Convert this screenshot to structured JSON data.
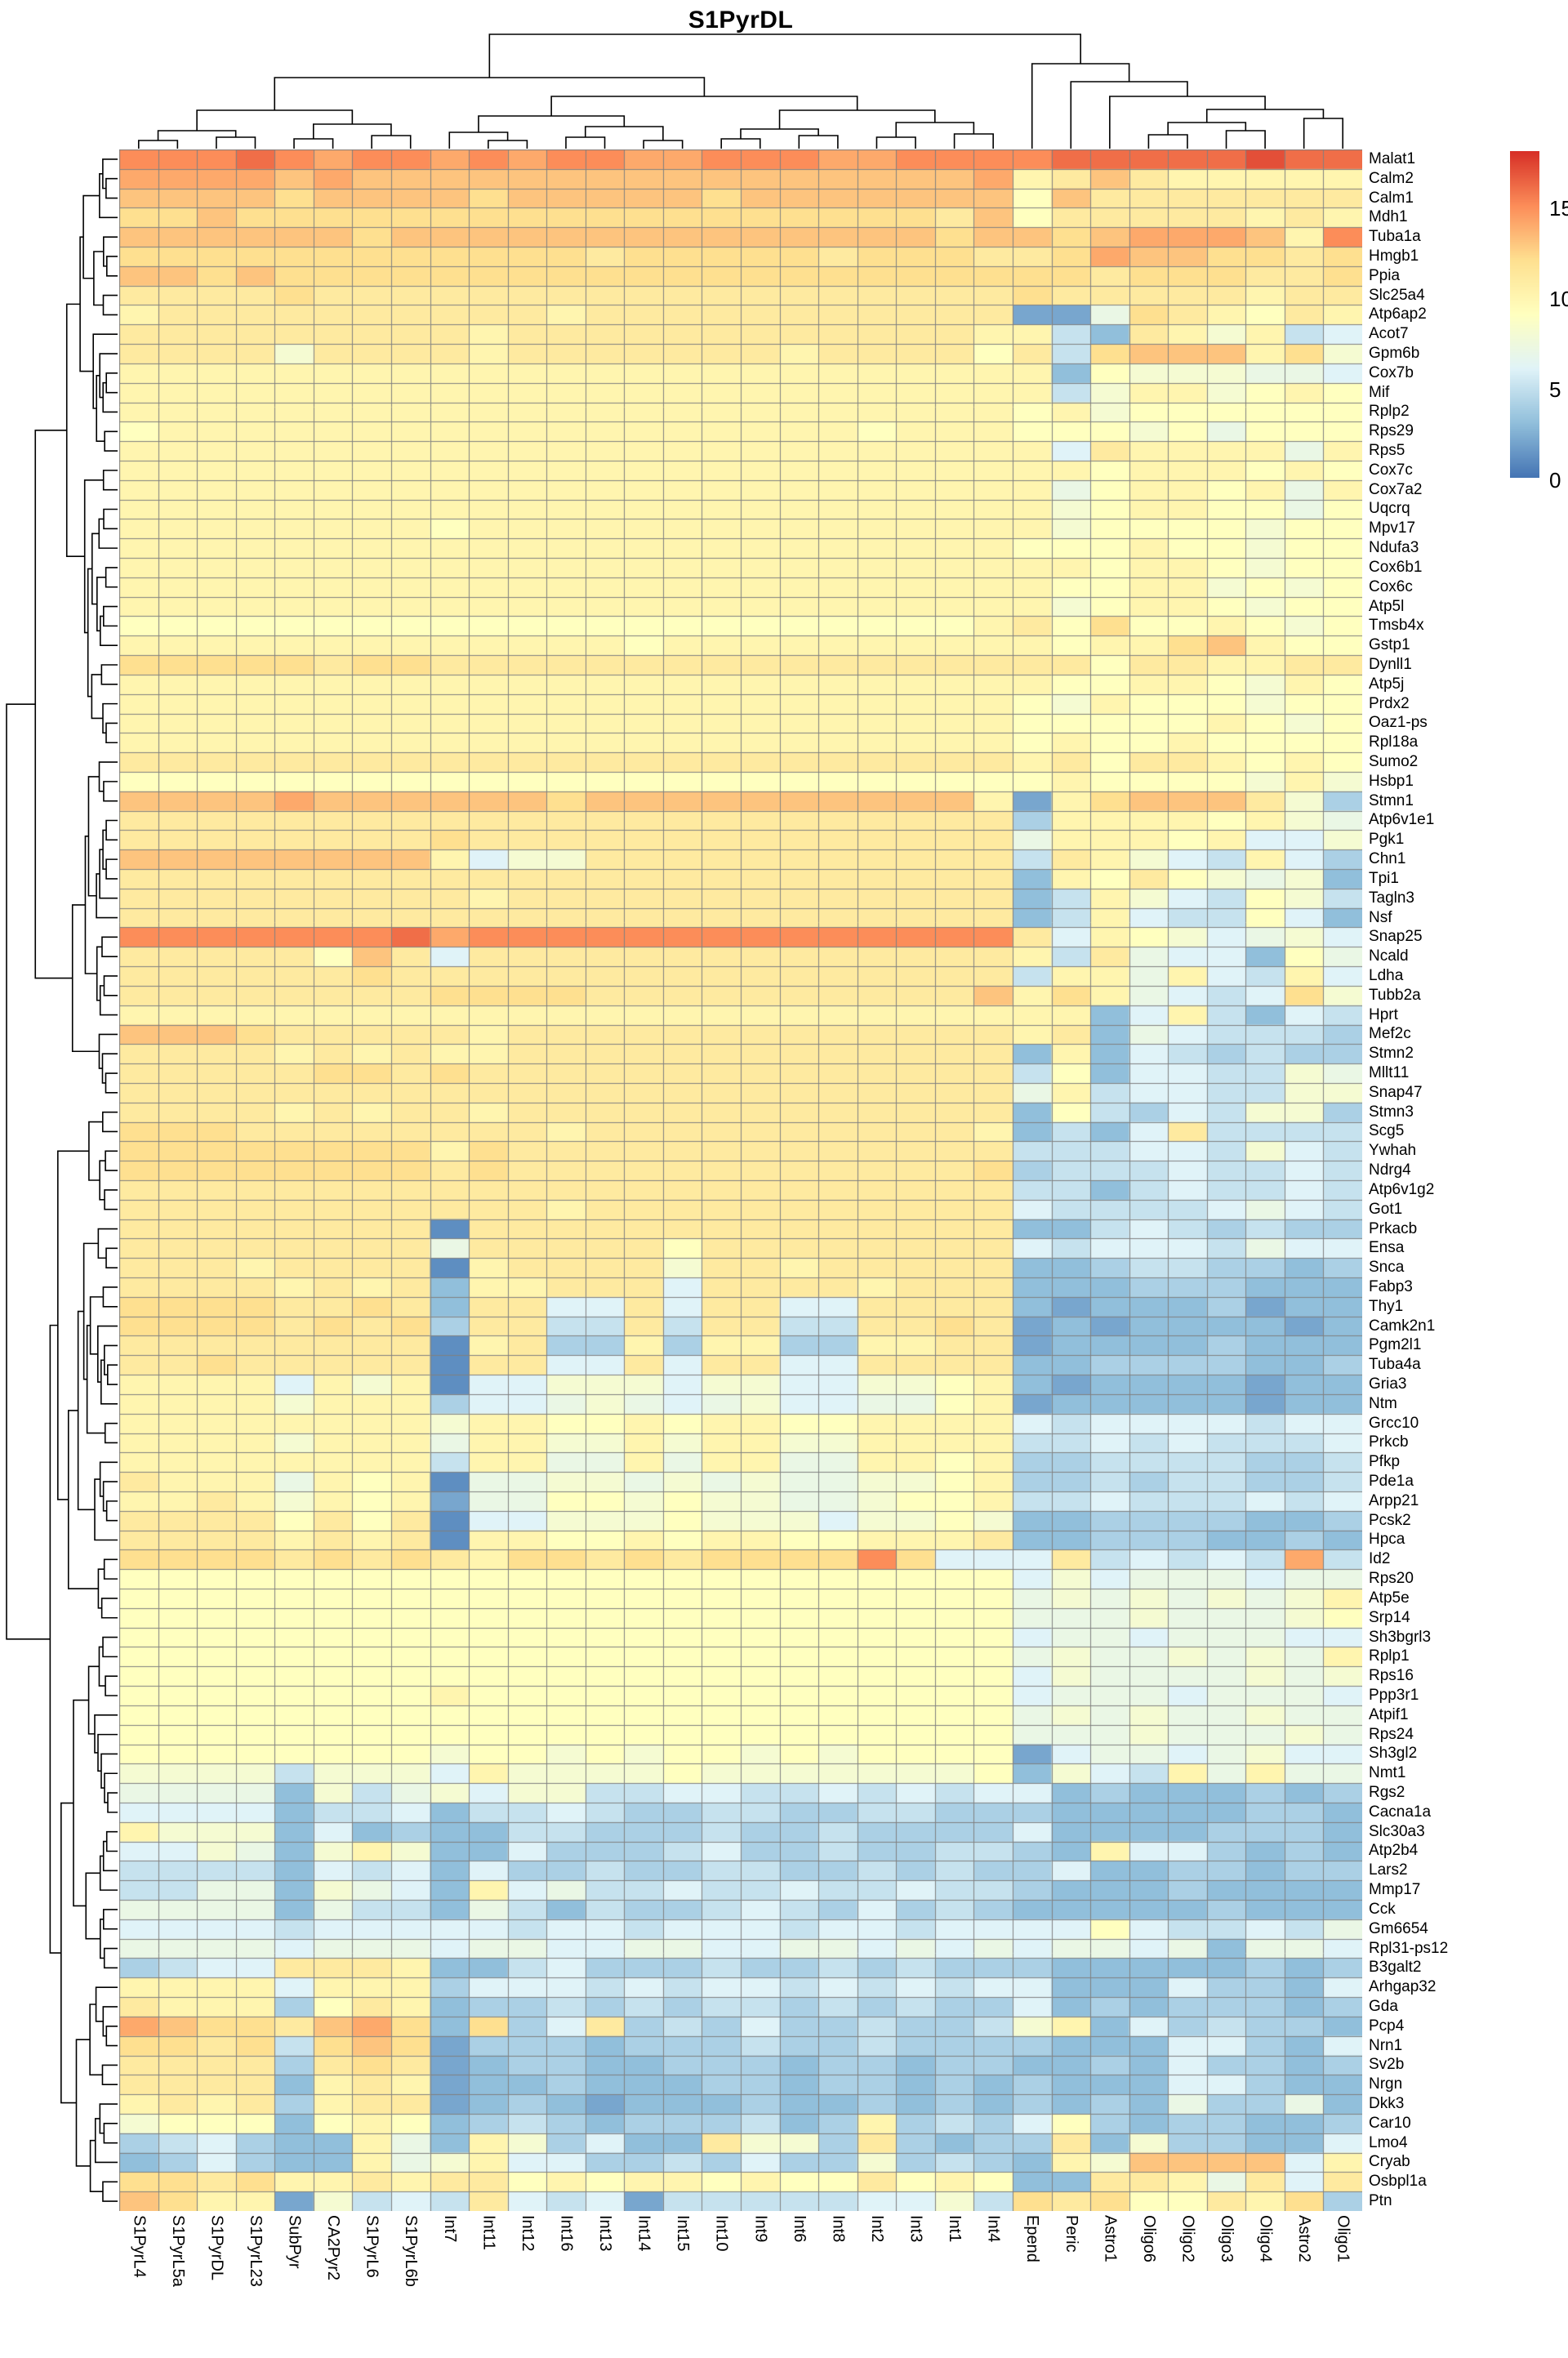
{
  "title": "S1PyrDL",
  "chart_data": {
    "type": "heatmap",
    "title": "S1PyrDL",
    "legend_position": "right",
    "grid": true,
    "grid_color": "#808080",
    "dendrograms": {
      "top": true,
      "left": true,
      "line_color": "#000000"
    },
    "colorbar": {
      "min": 0,
      "max": 18,
      "ticks": [
        15,
        10,
        5,
        0
      ],
      "palette_low_to_high": [
        "#4575b4",
        "#91bfdb",
        "#e0f3f8",
        "#ffffbf",
        "#fee090",
        "#fc8d59",
        "#d73027"
      ]
    },
    "columns": [
      "S1PyrL4",
      "S1PyrL5a",
      "S1PyrDL",
      "S1PyrL23",
      "SubPyr",
      "CA2Pyr2",
      "S1PyrL6",
      "S1PyrL6b",
      "Int7",
      "Int11",
      "Int12",
      "Int16",
      "Int13",
      "Int14",
      "Int15",
      "Int10",
      "Int9",
      "Int6",
      "Int8",
      "Int2",
      "Int3",
      "Int1",
      "Int4",
      "Epend",
      "Peric",
      "Astro1",
      "Oligo6",
      "Oligo2",
      "Oligo3",
      "Oligo4",
      "Astro2",
      "Oligo1"
    ],
    "rows": [
      "Malat1",
      "Calm2",
      "Calm1",
      "Mdh1",
      "Tuba1a",
      "Hmgb1",
      "Ppia",
      "Slc25a4",
      "Atp6ap2",
      "Acot7",
      "Gpm6b",
      "Cox7b",
      "Mif",
      "Rplp2",
      "Rps29",
      "Rps5",
      "Cox7c",
      "Cox7a2",
      "Uqcrq",
      "Mpv17",
      "Ndufa3",
      "Cox6b1",
      "Cox6c",
      "Atp5l",
      "Tmsb4x",
      "Gstp1",
      "Dynll1",
      "Atp5j",
      "Prdx2",
      "Oaz1-ps",
      "Rpl18a",
      "Sumo2",
      "Hsbp1",
      "Stmn1",
      "Atp6v1e1",
      "Pgk1",
      "Chn1",
      "Tpi1",
      "Tagln3",
      "Nsf",
      "Snap25",
      "Ncald",
      "Ldha",
      "Tubb2a",
      "Hprt",
      "Mef2c",
      "Stmn2",
      "Mllt11",
      "Snap47",
      "Stmn3",
      "Scg5",
      "Ywhah",
      "Ndrg4",
      "Atp6v1g2",
      "Got1",
      "Prkacb",
      "Ensa",
      "Snca",
      "Fabp3",
      "Thy1",
      "Camk2n1",
      "Pgm2l1",
      "Tuba4a",
      "Gria3",
      "Ntm",
      "Grcc10",
      "Prkcb",
      "Pfkp",
      "Pde1a",
      "Arpp21",
      "Pcsk2",
      "Hpca",
      "Id2",
      "Rps20",
      "Atp5e",
      "Srp14",
      "Sh3bgrl3",
      "Rplp1",
      "Rps16",
      "Ppp3r1",
      "Atpif1",
      "Rps24",
      "Sh3gl2",
      "Nmt1",
      "Rgs2",
      "Cacna1a",
      "Slc30a3",
      "Atp2b4",
      "Lars2",
      "Mmp17",
      "Cck",
      "Gm6654",
      "Rpl31-ps12",
      "B3galt2",
      "Arhgap32",
      "Gda",
      "Pcp4",
      "Nrn1",
      "Sv2b",
      "Nrgn",
      "Dkk3",
      "Car10",
      "Lmo4",
      "Cryab",
      "Osbpl1a",
      "Ptn"
    ],
    "values_encoding": "Each matrix string holds one character per column (32 per row); characters 0-9 then a-h encode estimated expression values 0-17 on the colorbar scale.",
    "matrix": [
      "fffgfeffefeffeefffeeffffggggghgg",
      "eeeededdddddddddddddddeabdbaaaaa",
      "ddddcddddcdddddcddddddd9dbbbbbbb",
      "ccdccccccccccccccccccbd9bbbbbaba",
      "ddddddcddddddddddddddcddcdeeedaf",
      "ccccccccccccbcccccbcccbbceddccbc",
      "ddcdcccccccccccccccccccccbcccbbc",
      "bbbbcbbbbbbbbbbbbbbbbbbcbbbbbabb",
      "abbbbbbbbbbabbbbbbbbbbb227cba9ba",
      "bbbbbbbbbabbbbbbbbbbbbaa53ba8a56",
      "bbbb8bbbbabbbbbbbabbbb9b5cdddac8",
      "aaaaaaaaaaaaaaaaaaaaaaaa39888776",
      "aaaaaaaaaaaaaaaaaaaaaaaa58aa89a9",
      "aaaaaaaaaaaaaaaaaaaaaaa9a8999999",
      "9aaaaaaaaaaaaaaaaaa9aaa999897999",
      "aaaaaaaaaaaaaaaaaaaaaaaa6baaaa7a",
      "aaaaaaaaaaaaaaaaaaaaaaaaa9aaa9a9",
      "aaaaaaaaaaaaaaaaaaaaaaaa79aa9a7a",
      "aaaaaaaaaaaaaaaaaaaaaaaa89aa9979",
      "aaaaaaaa9aaaaaaaaaaaaaaa89999899",
      "aaaaaaaaaaaaaaaaaaaaaaa999a99899",
      "aaaaaaaaaaaaaaaaaaaaaaaaa9aa9899",
      "aaaaaaaaaaaaaaaaaaaaaaaa99aa8989",
      "aaaaaaaaaaaaaaaaaaaaaaaa89aa9899",
      "9999999999999999999999ab9c99a989",
      "aaaaaaaaaaaaa9aaaaaaaaaa9aacda99",
      "cccccbccbbbbbbbbbbbbbbbbb9bbaabb",
      "aaaaaaaaaaaaaaaaaaaaaaaa99aa98a9",
      "aaaaaaaaaaaaaaaaaaaaaaa98a999899",
      "aaaaaaaaaaaaaaaaaaaaaaa99999a989",
      "aaaaaaaaaaaaaaaaaaaaaaa9a99a9999",
      "bbbbbbbbbbbbbbbbbbbbbbbab9bba9a9",
      "99999999999999999999999 9a99998a8",
      "ddddeddddddcdddddddddda2acdddb84",
      "bbbbbbbbbbbbbbbbbbbbbbb4aaaa9a87",
      "bbbbbbbbcbbbbbbbbbbbbbb7aaa9a668",
      "dddddddda688bbbbbbbbbbb5ba865a64",
      "bbbbbbbbbbbbbbbbbbbbbbb3a9b98783",
      "bbbbbbbbbabbbbbbbbbbbbb35a865985",
      "bbbbbbbbbbbbbbbbbbbbbbb35a655963",
      "fffffffgeffffffffffffffb6a986786",
      "bbbbb9db6bbbbbbbbbbbbbba5b766397",
      "bbbbbbcbbbbbbbbbbbbbbbb5aa7a65a6",
      "bbbbbbbbccccbbbbbbbbbbdaca7656c8",
      "aaaaaaaaaaaaaaaaaaaaaaaaa36a5365",
      "dddcbbbbbabbbbbbbbbbbbbab3765554",
      "bbbbababaabbbbbbbbbbbbb3a3654544",
      "bbbbbccbcbbbbbbbbbbbbbb593665587",
      "bbbbbbbbbbbbbbbbbbbbbbb7a5665588",
      "bbbbababbabbbbbbbbbbbbb395465884",
      "cccbbbbbbbbabbbbbbbbbba3536b5555",
      "ccccccccacbbbbbbbbbbbbb555665865",
      "ccccccccbcbbbbbbbbbbbbc455565565",
      "bbbbbbbbbbbbbbbbbbbbbbb553565565",
      "bbbbbbbbbbbabbbbbbbbbbb655556765",
      "bbbbbbbb1bbbbbbbbbbbbbb335654544",
      "bbbbbbbb7bbbbb9bbbbbbbb656665766",
      "bbbabbbb1abbbb8bbabbbbb334554434",
      "bbbbabab3aabbb6bbbbabbb333444333",
      "ccccbbcb3bb66b6bb66bbbb323334233",
      "ccccbcbc4bb55b5bb55bbcb232333323",
      "bbbbbbbb1ab44a4aa44aabb233334333",
      "bbcbbbbb1bb66b6bb66bbbb334444334",
      "aaaa6a8a16688868866889a323333233",
      "aaaa8aaa46678767866779a233333233",
      "aaaaaaaa8aa99a9aa99aaaa656666566",
      "aaaa8aaa7aa88a8aa88aaaa556565556",
      "aaaaaaaa5aa77a7aa77aa9a445555445",
      "baaa7a9a17788787877889a445455445",
      "aaba8a9a27799898877899a556555656",
      "bbbb9b9b166888988868898334444334",
      "bbbbabab1aa99a9aa99aaab334443343",
      "ccccbcbcbaccbcbccccfc666b56565e5",
      "9999999999999999999999 9686777677",
      "9999999999999999999999 978787878a",
      "9999999999999999999999 9777877789",
      "9999999999999999999999 9677677766",
      "9999999999999999999999 978778787a",
      "9999999999999999999999 9687777878",
      "99999999a99999999999999677767776",
      "9999999999999999999999 9787877877",
      "9999999999999999999999 9777877787",
      "99999999899898998989999267767866",
      "888858886a88889888888893865a7a77",
      "77773857868855665565656634333434",
      "66663556355654455445544433333443",
      "a8883634335544454454444633334443",
      "668738a833644456445445543a664343",
      "55553656364454455445454463344344",
      "557738763a6755655655655433343333",
      "77773755375354456546454333334333",
      "66665666665665666566566669655657",
      "77776777677667766776767677673776",
      "4566bbba335644454454544433333434",
      "aaaa6aaa466656566565656633364436",
      "baaa49ba344545455454544634344434",
      "edccbdec3c46b45464454458a3645443",
      "ccbc5cdc244434445445444433366436",
      "bbbb4bcb234433444344344334364434",
      "bbbb3aba233433344344343433366433",
      "abab4abb234323334334343434374473",
      "899939a934543444534a454694344334",
      "456433a73a84633b884b4344b3844336",
      "346433a78a66445464484543a8dddd6a",
      "ccbcaababb9a9aa9a99b9a933bba7b6b",
      "dcaa28565b6562555556685cbc99bac4"
    ]
  },
  "legend": {
    "tick_labels": [
      "15",
      "10",
      "5",
      "0"
    ]
  }
}
